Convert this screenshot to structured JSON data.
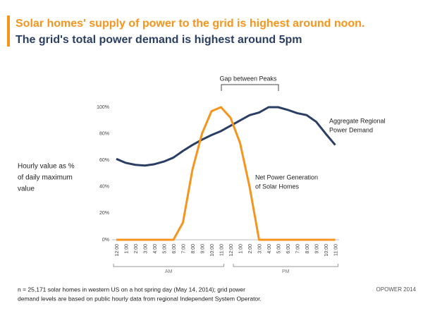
{
  "chart_data": {
    "type": "line",
    "title": "Solar homes' supply of power to the grid is highest around noon.",
    "subtitle": "The grid's total power demand is highest around 5pm",
    "y_label": [
      "Hourly value as %",
      "of daily maximum",
      "value"
    ],
    "categories": [
      "12:00",
      "1:00",
      "2:00",
      "3:00",
      "4:00",
      "5:00",
      "6:00",
      "7:00",
      "8:00",
      "9:00",
      "10:00",
      "11:00",
      "12:00",
      "1:00",
      "2:00",
      "3:00",
      "4:00",
      "5:00",
      "6:00",
      "7:00",
      "8:00",
      "9:00",
      "10:00",
      "11:00"
    ],
    "x_groups": [
      "AM",
      "PM"
    ],
    "series": [
      {
        "name": "Aggregate Regional Power Demand",
        "color": "#2b3e63",
        "values": [
          61,
          58,
          56.5,
          56,
          57,
          59,
          62,
          67,
          71.5,
          75.5,
          79,
          82,
          86,
          90,
          94,
          96,
          100,
          100,
          98,
          95.5,
          94,
          89,
          80,
          71.5
        ]
      },
      {
        "name": "Net Power Generation of Solar Homes",
        "color": "#f7941d",
        "values": [
          0,
          0,
          0,
          0,
          0,
          0,
          0,
          13,
          53,
          80,
          97,
          100,
          92,
          73,
          40,
          0,
          0,
          0,
          0,
          0,
          0,
          0,
          0,
          0
        ]
      }
    ],
    "ylim": [
      0,
      100
    ],
    "yticks": [
      {
        "value": 0,
        "label": "0%"
      },
      {
        "value": 20,
        "label": "20%"
      },
      {
        "value": 40,
        "label": "40%"
      },
      {
        "value": 60,
        "label": "60%"
      },
      {
        "value": 80,
        "label": "80%"
      },
      {
        "value": 100,
        "label": "100%"
      }
    ],
    "grid": false,
    "annotations": [
      [
        "Gap between Peaks"
      ],
      [
        "Aggregate Regional",
        "Power Demand"
      ],
      [
        "Net Power Generation",
        "of Solar Homes"
      ]
    ],
    "footnote": [
      "n = 25,171 solar homes in western US on a hot spring day (May 14, 2014); grid power",
      "demand levels are based on public hourly data from regional Independent System Operator."
    ],
    "source": "OPOWER 2014"
  }
}
